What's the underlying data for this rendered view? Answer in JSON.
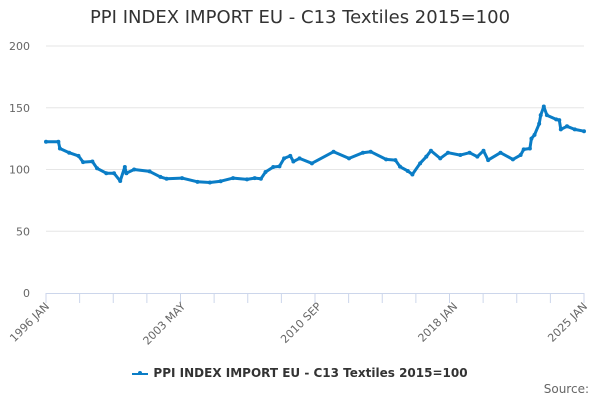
{
  "chart_data": {
    "type": "line",
    "title": "PPI INDEX IMPORT EU - C13 Textiles 2015=100",
    "xlabel": "",
    "ylabel": "",
    "ylim": [
      0,
      200
    ],
    "yticks": [
      0,
      50,
      100,
      150,
      200
    ],
    "xlim": [
      "1996-01",
      "2025-01"
    ],
    "xtick_labels": [
      "1996 JAN",
      "2003 MAY",
      "2010 SEP",
      "2018 JAN",
      "2025 JAN"
    ],
    "grid": true,
    "legend_position": "bottom",
    "color": "#0a7dc6",
    "series": [
      {
        "name": "PPI INDEX IMPORT EU - C13 Textiles 2015=100",
        "x": [
          "1996-01",
          "1996-09",
          "1996-10",
          "1997-04",
          "1997-10",
          "1998-01",
          "1998-07",
          "1998-10",
          "1999-04",
          "1999-09",
          "2000-01",
          "2000-04",
          "2000-05",
          "2000-10",
          "2001-08",
          "2002-03",
          "2002-07",
          "2003-05",
          "2004-03",
          "2004-11",
          "2005-06",
          "2006-02",
          "2006-11",
          "2007-04",
          "2007-08",
          "2007-11",
          "2008-04",
          "2008-08",
          "2008-11",
          "2009-03",
          "2009-05",
          "2009-09",
          "2010-05",
          "2011-07",
          "2012-05",
          "2013-02",
          "2013-07",
          "2014-05",
          "2014-11",
          "2015-02",
          "2015-07",
          "2015-10",
          "2016-03",
          "2016-07",
          "2016-10",
          "2017-04",
          "2017-09",
          "2018-05",
          "2018-11",
          "2019-04",
          "2019-08",
          "2019-11",
          "2020-07",
          "2021-03",
          "2021-08",
          "2021-10",
          "2022-02",
          "2022-03",
          "2022-05",
          "2022-08",
          "2022-09",
          "2022-11",
          "2023-01",
          "2023-07",
          "2023-09",
          "2023-10",
          "2024-02",
          "2024-07",
          "2025-01"
        ],
        "values": [
          122.5,
          122.5,
          117,
          113.6,
          111,
          106,
          106.5,
          101,
          97,
          97,
          90.7,
          102,
          97,
          100,
          98.5,
          94,
          92.5,
          93,
          90,
          89.5,
          90.5,
          93,
          92,
          93,
          92.5,
          98,
          102,
          102.5,
          109,
          111,
          106.5,
          109,
          105,
          114.4,
          109,
          113.6,
          114.4,
          108.2,
          107.6,
          102.3,
          98.8,
          96,
          105,
          110.4,
          115.2,
          109,
          113.6,
          111.7,
          113.6,
          110.4,
          115.2,
          107.6,
          113.6,
          108.2,
          111.7,
          116.3,
          117,
          125,
          128,
          137,
          144,
          151,
          144,
          140.6,
          140,
          132.5,
          135,
          132.5,
          131
        ]
      }
    ]
  },
  "source_label": "Source:"
}
